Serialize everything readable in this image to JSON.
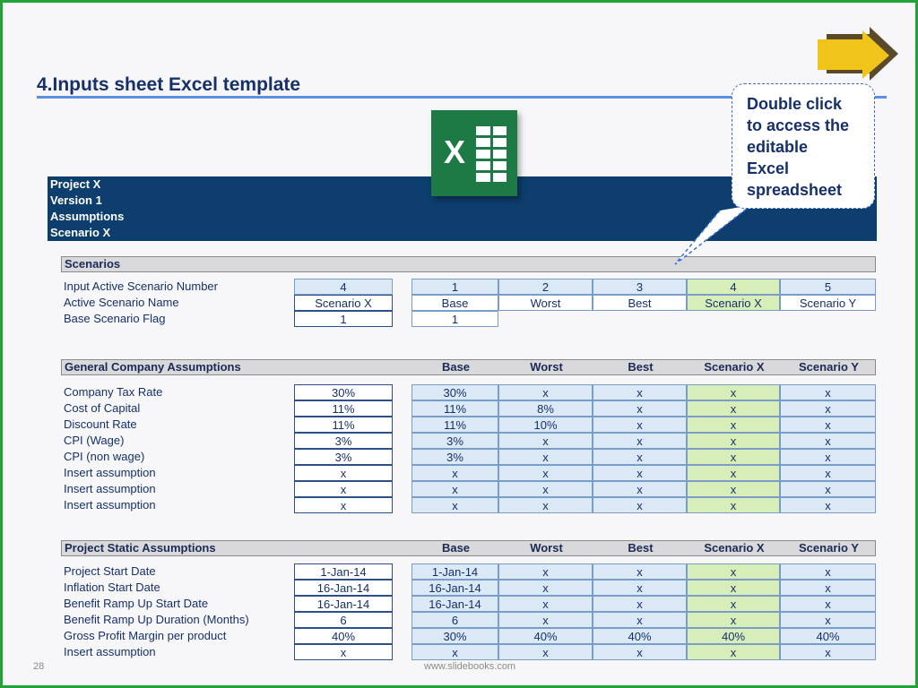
{
  "page": {
    "title": "4.Inputs sheet Excel template",
    "page_number": "28",
    "footer_url": "www.slidebooks.com"
  },
  "callout": {
    "lines": [
      "Double click",
      "to access the",
      "editable",
      "Excel",
      "spreadsheet"
    ]
  },
  "icons": {
    "next": "next-arrow-icon",
    "excel": "excel-icon"
  },
  "colors": {
    "frame": "#22a33a",
    "banner": "#0d3e6d",
    "title": "#15306b",
    "selected_scenario": "#d8eeb8",
    "scenario_cells": "#dbe8f5"
  },
  "banner": {
    "lines": [
      "Project X",
      "Version 1",
      "Assumptions",
      "Scenario X"
    ]
  },
  "scenarios": {
    "header": "Scenarios",
    "rows": [
      {
        "label": "Input Active Scenario Number",
        "input": "4",
        "values": [
          "1",
          "2",
          "3",
          "4",
          "5"
        ]
      },
      {
        "label": "Active Scenario Name",
        "input": "Scenario X",
        "values": [
          "Base",
          "Worst",
          "Best",
          "Scenario X",
          "Scenario Y"
        ]
      },
      {
        "label": "Base Scenario Flag",
        "input": "1",
        "values": [
          "1"
        ]
      }
    ]
  },
  "general": {
    "header": "General Company Assumptions",
    "columns": [
      "Base",
      "Worst",
      "Best",
      "Scenario X",
      "Scenario Y"
    ],
    "rows": [
      {
        "label": "Company Tax Rate",
        "input": "30%",
        "values": [
          "30%",
          "x",
          "x",
          "x",
          "x"
        ]
      },
      {
        "label": "Cost of Capital",
        "input": "11%",
        "values": [
          "11%",
          "8%",
          "x",
          "x",
          "x"
        ]
      },
      {
        "label": "Discount Rate",
        "input": "11%",
        "values": [
          "11%",
          "10%",
          "x",
          "x",
          "x"
        ]
      },
      {
        "label": "CPI (Wage)",
        "input": "3%",
        "values": [
          "3%",
          "x",
          "x",
          "x",
          "x"
        ]
      },
      {
        "label": "CPI (non wage)",
        "input": "3%",
        "values": [
          "3%",
          "x",
          "x",
          "x",
          "x"
        ]
      },
      {
        "label": "Insert assumption",
        "input": "x",
        "values": [
          "x",
          "x",
          "x",
          "x",
          "x"
        ]
      },
      {
        "label": "Insert assumption",
        "input": "x",
        "values": [
          "x",
          "x",
          "x",
          "x",
          "x"
        ]
      },
      {
        "label": "Insert assumption",
        "input": "x",
        "values": [
          "x",
          "x",
          "x",
          "x",
          "x"
        ]
      }
    ]
  },
  "static": {
    "header": "Project Static Assumptions",
    "columns": [
      "Base",
      "Worst",
      "Best",
      "Scenario X",
      "Scenario Y"
    ],
    "rows": [
      {
        "label": "Project Start Date",
        "input": "1-Jan-14",
        "values": [
          "1-Jan-14",
          "x",
          "x",
          "x",
          "x"
        ]
      },
      {
        "label": "Inflation Start Date",
        "input": "16-Jan-14",
        "values": [
          "16-Jan-14",
          "x",
          "x",
          "x",
          "x"
        ]
      },
      {
        "label": "Benefit Ramp Up Start Date",
        "input": "16-Jan-14",
        "values": [
          "16-Jan-14",
          "x",
          "x",
          "x",
          "x"
        ]
      },
      {
        "label": "Benefit Ramp Up Duration (Months)",
        "input": "6",
        "values": [
          "6",
          "x",
          "x",
          "x",
          "x"
        ]
      },
      {
        "label": "Gross Profit Margin per product",
        "input": "40%",
        "values": [
          "30%",
          "40%",
          "40%",
          "40%",
          "40%"
        ]
      },
      {
        "label": "Insert assumption",
        "input": "x",
        "values": [
          "x",
          "x",
          "x",
          "x",
          "x"
        ]
      }
    ]
  }
}
